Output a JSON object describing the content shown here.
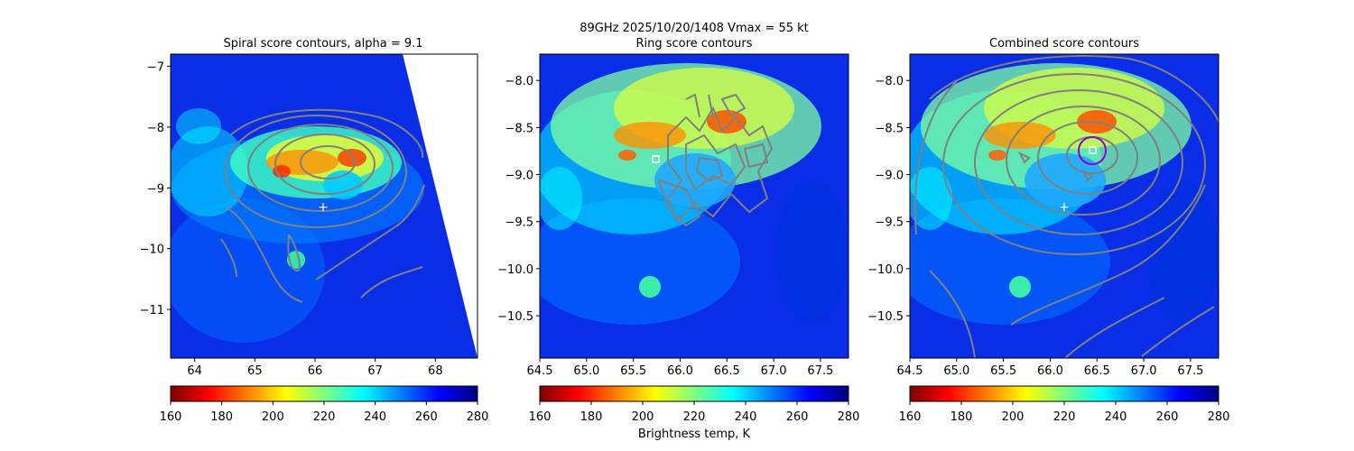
{
  "suptitle": "89GHz  2025/10/20/1408    Vmax = 55 kt",
  "colors": {
    "contour": "#808080",
    "marker": "#ffffff",
    "circle": "#9400d3",
    "jet": [
      "#7f0000",
      "#ff0000",
      "#ff7f00",
      "#ffff00",
      "#7fff7f",
      "#00ffff",
      "#007fff",
      "#0000ff",
      "#00007f"
    ]
  },
  "chart_data": [
    {
      "type": "heatmap",
      "title": "Spiral score contours, alpha =  9.1",
      "xlim": [
        63.6,
        68.7
      ],
      "ylim": [
        -11.8,
        -6.8
      ],
      "xticks": [
        64,
        65,
        66,
        67,
        68
      ],
      "yticks": [
        -7,
        -8,
        -9,
        -10,
        -11
      ],
      "swath_edge": "right diagonal",
      "center_marker": {
        "symbol": "+",
        "x": 66.15,
        "y": -9.33
      },
      "colorbar": {
        "range": [
          160,
          280
        ],
        "ticks": [
          160,
          180,
          200,
          220,
          240,
          260,
          280
        ],
        "label": "",
        "colormap": "jet_r"
      }
    },
    {
      "type": "heatmap",
      "title": "Ring score contours",
      "xlim": [
        64.5,
        67.8
      ],
      "ylim": [
        -10.95,
        -7.72
      ],
      "xticks": [
        64.5,
        65.0,
        65.5,
        66.0,
        66.5,
        67.0,
        67.5
      ],
      "yticks": [
        -8.0,
        -8.5,
        -9.0,
        -9.5,
        -10.0,
        -10.5
      ],
      "xticklabels": [
        "64.5",
        "65.0",
        "65.5",
        "66.0",
        "66.5",
        "67.0",
        "67.5"
      ],
      "yticklabels": [
        "−8.0",
        "−8.5",
        "−9.0",
        "−9.5",
        "−10.0",
        "−10.5"
      ],
      "center_marker": {
        "symbol": "square",
        "x": 65.73,
        "y": -8.82
      },
      "colorbar": {
        "range": [
          160,
          280
        ],
        "ticks": [
          160,
          180,
          200,
          220,
          240,
          260,
          280
        ],
        "label": "Brightness temp, K",
        "colormap": "jet_r"
      }
    },
    {
      "type": "heatmap",
      "title": "Combined score contours",
      "xlim": [
        64.5,
        67.8
      ],
      "ylim": [
        -10.95,
        -7.72
      ],
      "xticks": [
        64.5,
        65.0,
        65.5,
        66.0,
        66.5,
        67.0,
        67.5
      ],
      "yticks": [
        -8.0,
        -8.5,
        -9.0,
        -9.5,
        -10.0,
        -10.5
      ],
      "xticklabels": [
        "64.5",
        "65.0",
        "65.5",
        "66.0",
        "66.5",
        "67.0",
        "67.5"
      ],
      "yticklabels": [
        "−8.0",
        "−8.5",
        "−9.0",
        "−9.5",
        "−10.0",
        "−10.5"
      ],
      "center_marker": {
        "symbol": "square",
        "x": 66.45,
        "y": -8.72
      },
      "first_guess_marker": {
        "symbol": "+",
        "x": 66.15,
        "y": -9.33
      },
      "circle": {
        "x": 66.45,
        "y": -8.72
      },
      "colorbar": {
        "range": [
          160,
          280
        ],
        "ticks": [
          160,
          180,
          200,
          220,
          240,
          260,
          280
        ],
        "label": "",
        "colormap": "jet_r"
      }
    }
  ]
}
